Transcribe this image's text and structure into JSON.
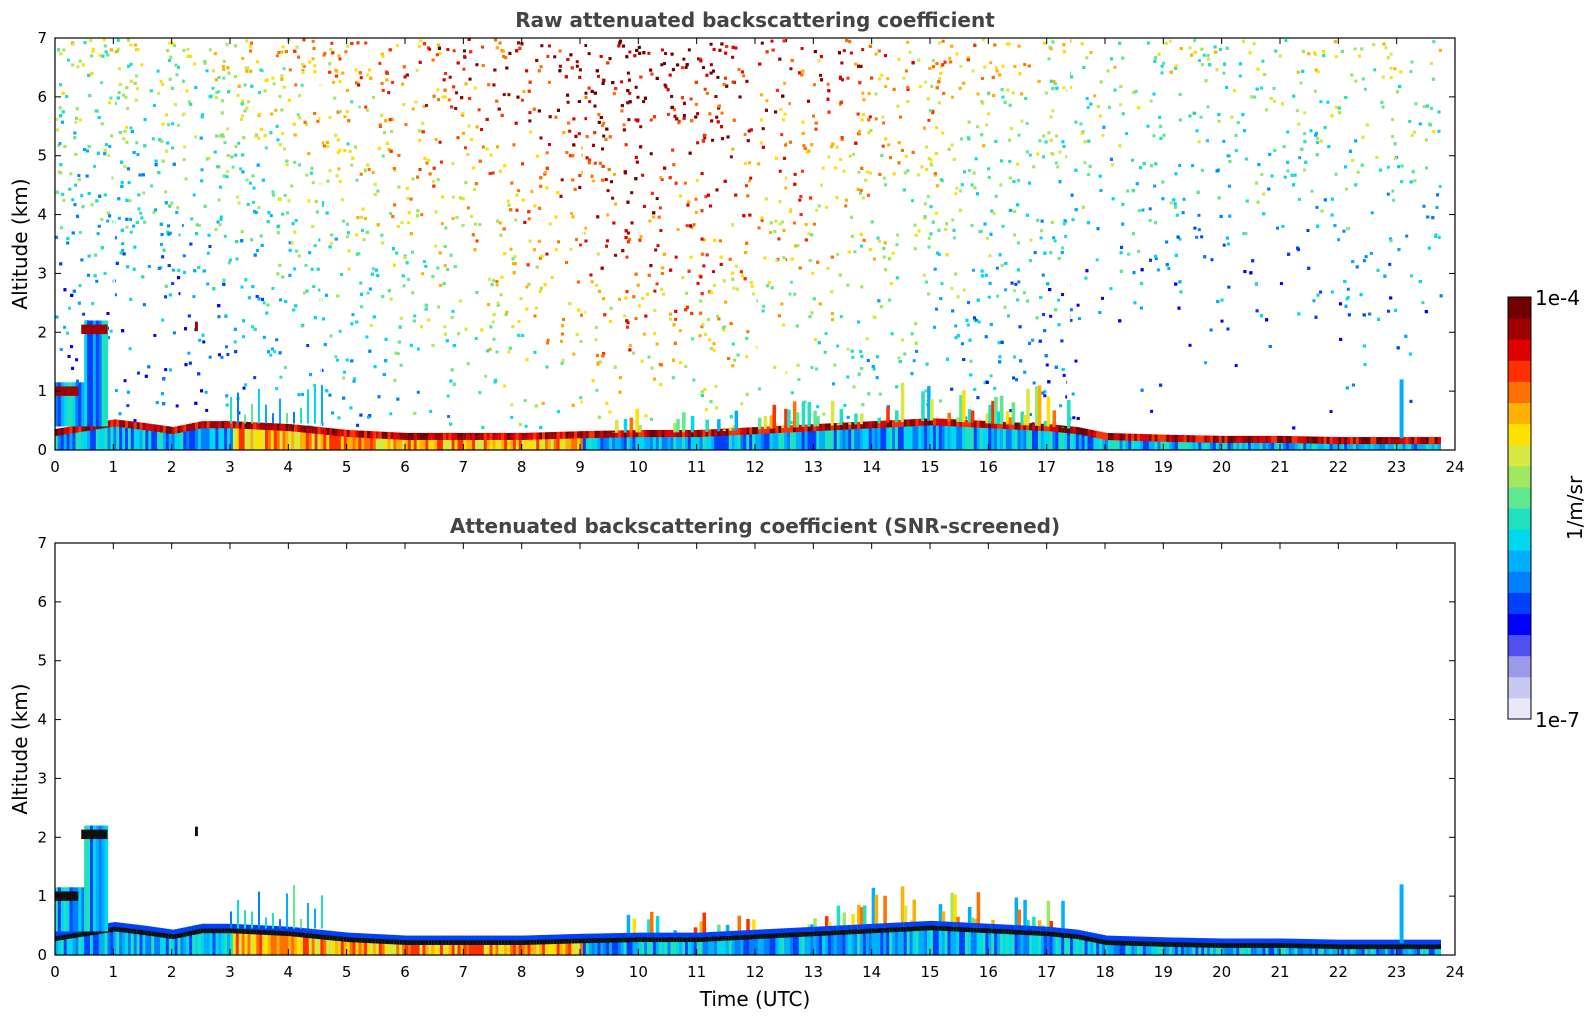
{
  "chart_data": [
    {
      "type": "heatmap",
      "title": "Raw attenuated backscattering coefficient",
      "xlabel": "",
      "ylabel": "Altitude (km)",
      "xlim": [
        0,
        24
      ],
      "ylim": [
        0,
        7
      ],
      "xticks": [
        "0",
        "1",
        "2",
        "3",
        "4",
        "5",
        "6",
        "7",
        "8",
        "9",
        "10",
        "11",
        "12",
        "13",
        "14",
        "15",
        "16",
        "17",
        "18",
        "19",
        "20",
        "21",
        "22",
        "23",
        "24"
      ],
      "yticks": [
        "0",
        "1",
        "2",
        "3",
        "4",
        "5",
        "6",
        "7"
      ],
      "data_extent_x": [
        0,
        23.75
      ],
      "layers": {
        "boundary_layer_top_km": [
          [
            0.0,
            0.32
          ],
          [
            1.0,
            0.48
          ],
          [
            1.5,
            0.42
          ],
          [
            2.0,
            0.35
          ],
          [
            2.5,
            0.45
          ],
          [
            3.0,
            0.45
          ],
          [
            4.0,
            0.4
          ],
          [
            5.0,
            0.3
          ],
          [
            6.0,
            0.25
          ],
          [
            7.0,
            0.25
          ],
          [
            8.0,
            0.25
          ],
          [
            9.0,
            0.28
          ],
          [
            10.0,
            0.3
          ],
          [
            11.0,
            0.3
          ],
          [
            12.0,
            0.35
          ],
          [
            13.0,
            0.4
          ],
          [
            14.0,
            0.45
          ],
          [
            15.0,
            0.5
          ],
          [
            16.0,
            0.45
          ],
          [
            17.0,
            0.4
          ],
          [
            17.5,
            0.35
          ],
          [
            18.0,
            0.25
          ],
          [
            19.0,
            0.22
          ],
          [
            20.0,
            0.2
          ],
          [
            21.0,
            0.2
          ],
          [
            22.0,
            0.18
          ],
          [
            23.0,
            0.18
          ],
          [
            23.75,
            0.18
          ]
        ],
        "cloud_layers": [
          {
            "x_start": 0.45,
            "x_end": 0.9,
            "altitude_km": 2.05
          },
          {
            "x_start": 0.0,
            "x_end": 0.4,
            "altitude_km": 1.0
          },
          {
            "x_start": 2.4,
            "x_end": 2.45,
            "altitude_km": 2.1
          }
        ]
      },
      "noise_gradient_note_free": true
    },
    {
      "type": "heatmap",
      "title": "Attenuated backscattering coefficient (SNR-screened)",
      "xlabel": "Time (UTC)",
      "ylabel": "Altitude (km)",
      "xlim": [
        0,
        24
      ],
      "ylim": [
        0,
        7
      ],
      "xticks": [
        "0",
        "1",
        "2",
        "3",
        "4",
        "5",
        "6",
        "7",
        "8",
        "9",
        "10",
        "11",
        "12",
        "13",
        "14",
        "15",
        "16",
        "17",
        "18",
        "19",
        "20",
        "21",
        "22",
        "23",
        "24"
      ],
      "yticks": [
        "0",
        "1",
        "2",
        "3",
        "4",
        "5",
        "6",
        "7"
      ],
      "data_extent_x": [
        0,
        23.75
      ]
    }
  ],
  "colorbar": {
    "label": "1/m/sr",
    "max_label": "1e-4",
    "min_label": "1e-7",
    "colors": [
      "#e8e8f8",
      "#c8c8f0",
      "#9a9ae8",
      "#5050f0",
      "#0000ff",
      "#0040ff",
      "#0080ff",
      "#00b0ff",
      "#00d8f0",
      "#20e0c0",
      "#60e890",
      "#a0e860",
      "#d8e840",
      "#ffe000",
      "#ffb000",
      "#ff7000",
      "#ff3000",
      "#e00000",
      "#a00000",
      "#700000"
    ]
  }
}
